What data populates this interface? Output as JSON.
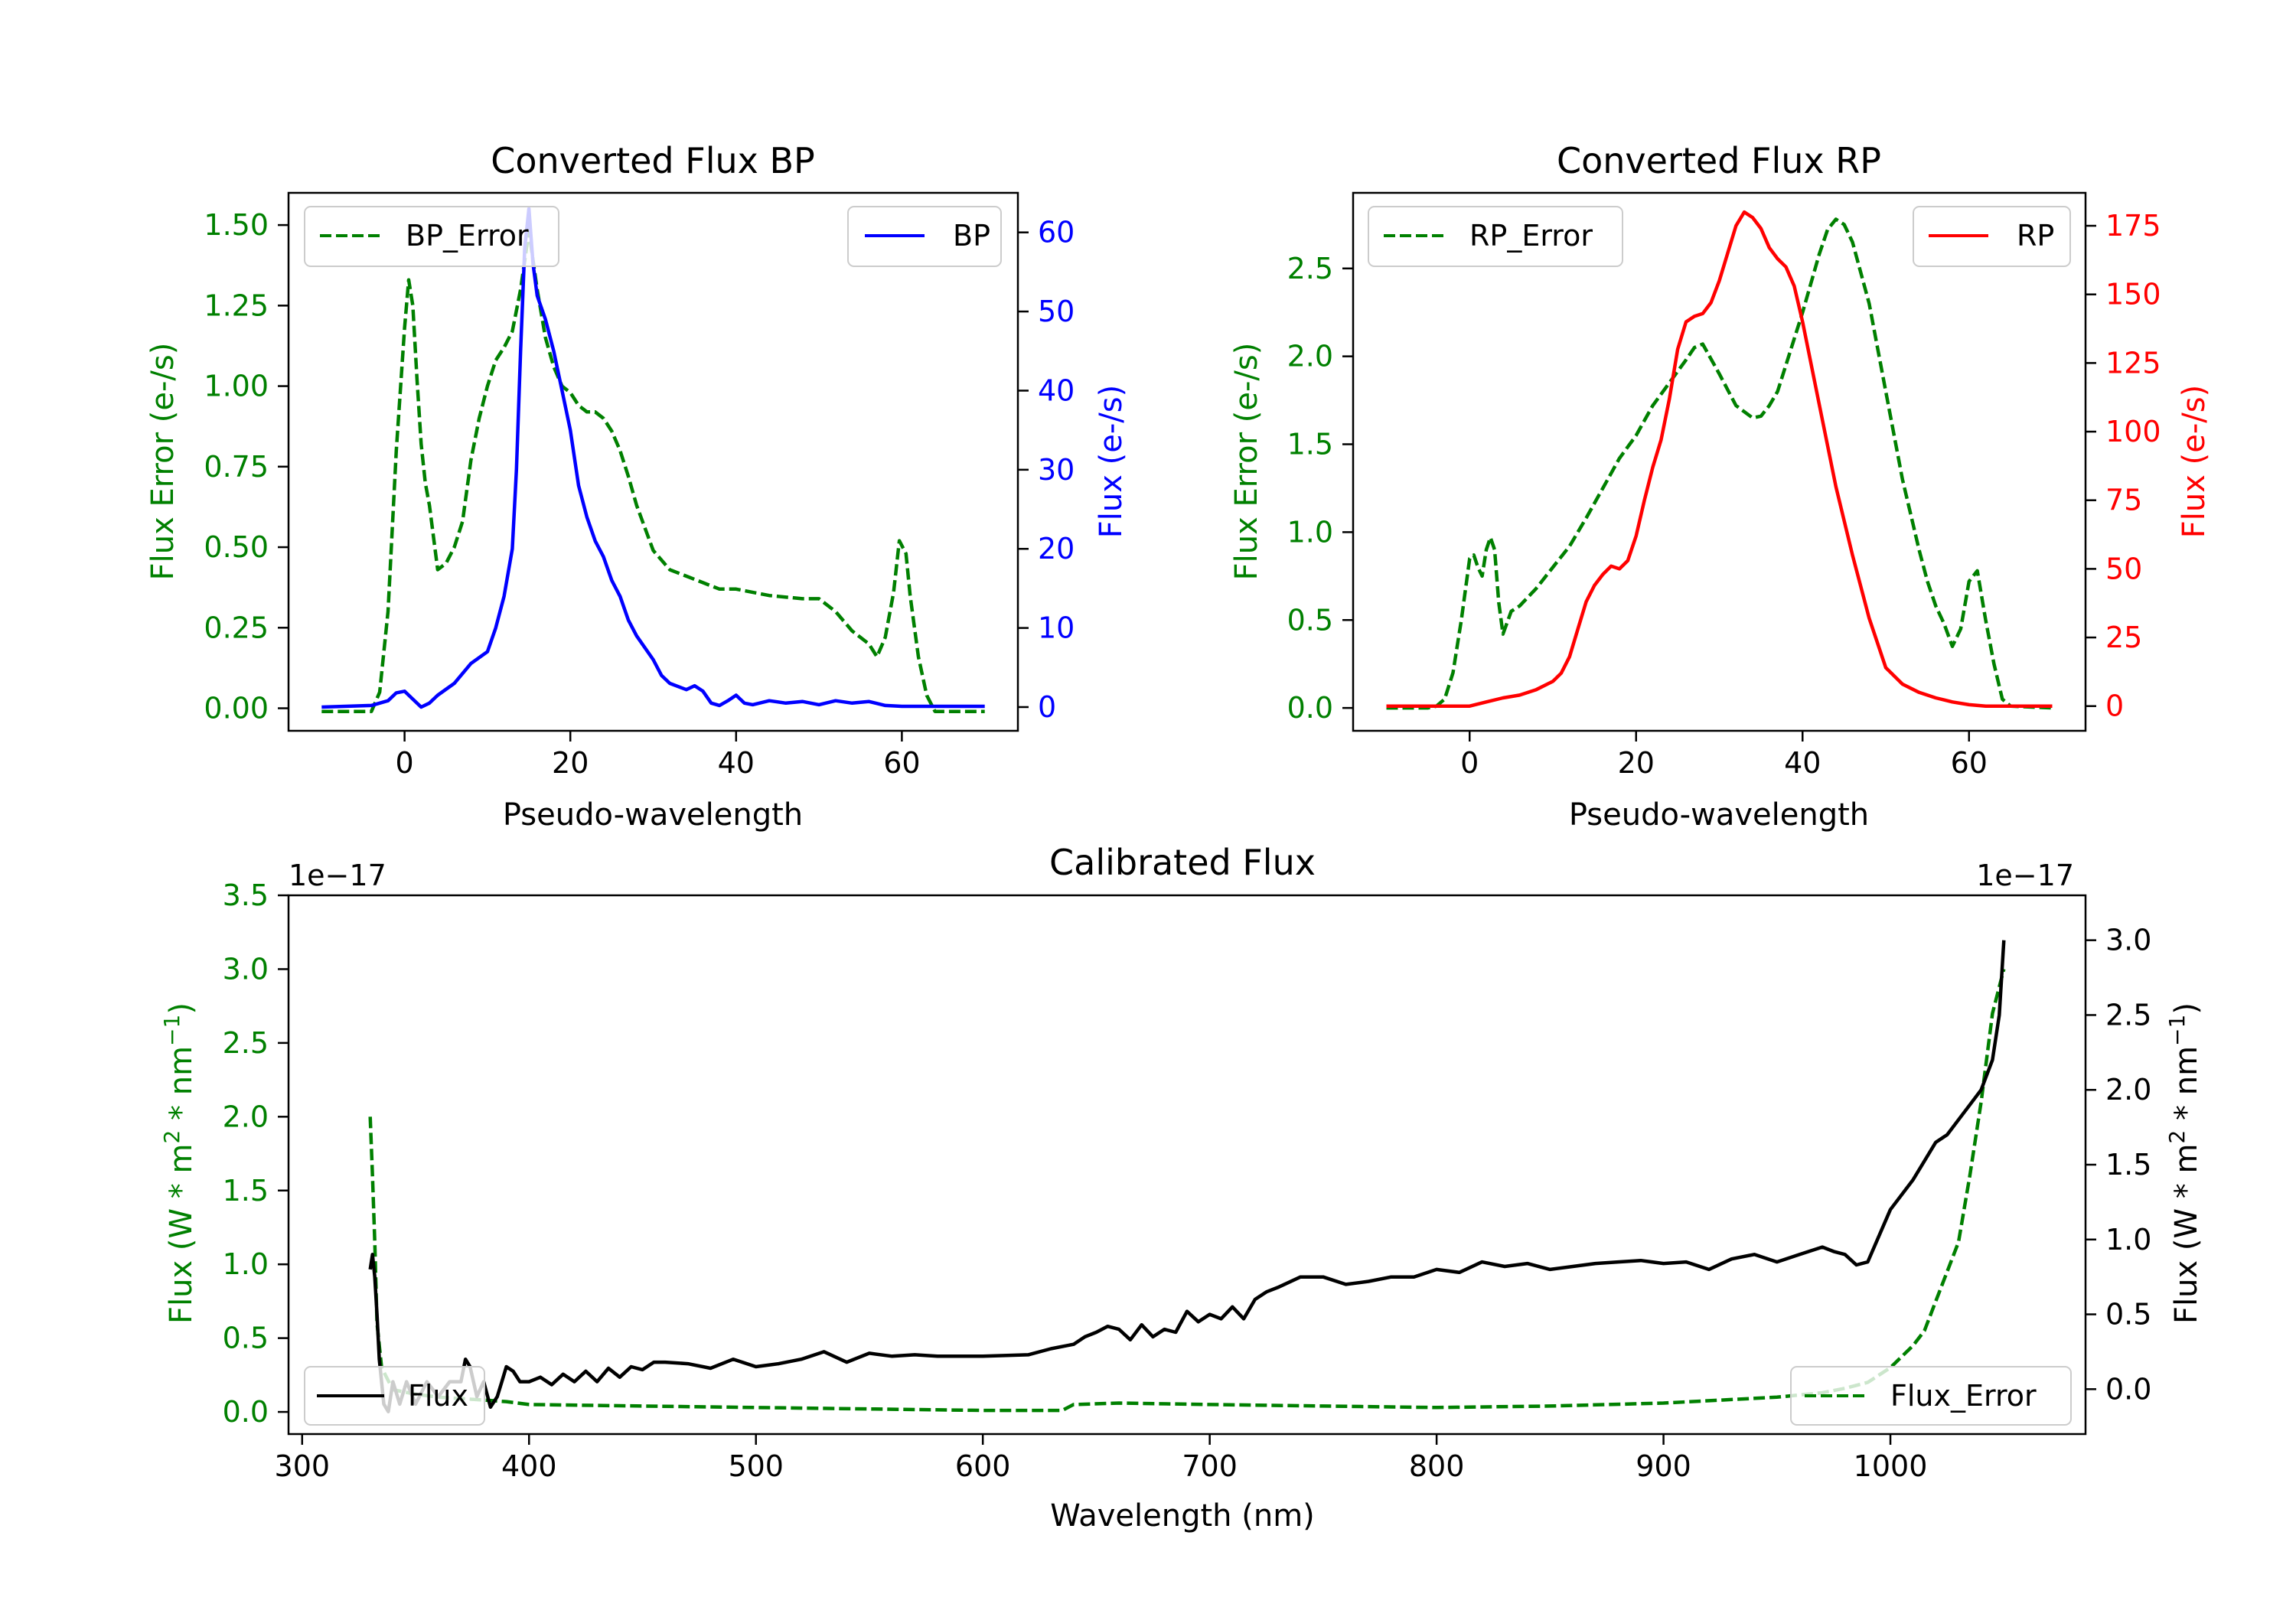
{
  "colors": {
    "bp_error": "#008000",
    "bp": "#0000ff",
    "rp_error": "#008000",
    "rp": "#ff0000",
    "flux": "#000000",
    "flux_error": "#008000"
  },
  "chart_data": [
    {
      "id": "bp",
      "type": "line",
      "title": "Converted Flux BP",
      "xlabel": "Pseudo-wavelength",
      "xlim": [
        -14,
        74
      ],
      "x_ticks": [
        0,
        20,
        40,
        60
      ],
      "left_axis": {
        "ylabel": "Flux Error (e-/s)",
        "color": "#008000",
        "ylim": [
          -0.07,
          1.6
        ],
        "ticks": [
          0.0,
          0.25,
          0.5,
          0.75,
          1.0,
          1.25,
          1.5
        ],
        "tick_labels": [
          "0.00",
          "0.25",
          "0.50",
          "0.75",
          "1.00",
          "1.25",
          "1.50"
        ]
      },
      "right_axis": {
        "ylabel": "Flux (e-/s)",
        "color": "#0000ff",
        "ylim": [
          -3,
          65
        ],
        "ticks": [
          0,
          10,
          20,
          30,
          40,
          50,
          60
        ],
        "tick_labels": [
          "0",
          "10",
          "20",
          "30",
          "40",
          "50",
          "60"
        ]
      },
      "legend_left": {
        "label": "BP_Error",
        "position": "upper left"
      },
      "legend_right": {
        "label": "BP",
        "position": "upper right"
      },
      "series": [
        {
          "name": "BP_Error",
          "axis": "left",
          "style": "dashed",
          "color": "#008000",
          "x": [
            -10,
            -4,
            -3,
            -2,
            -1,
            0,
            0.5,
            1,
            1.5,
            2,
            2.5,
            3,
            4,
            5,
            6,
            7,
            8,
            9,
            10,
            11,
            12,
            13,
            14,
            15,
            16,
            17,
            18,
            19,
            20,
            21,
            22,
            23,
            24,
            25,
            26,
            27,
            28,
            30,
            32,
            34,
            36,
            38,
            40,
            44,
            48,
            50,
            52,
            54,
            56,
            57,
            58,
            59,
            59.7,
            60.5,
            61,
            62,
            63,
            64,
            66,
            70
          ],
          "y": [
            -0.01,
            -0.01,
            0.05,
            0.3,
            0.8,
            1.18,
            1.33,
            1.25,
            1.02,
            0.82,
            0.7,
            0.63,
            0.43,
            0.45,
            0.5,
            0.58,
            0.77,
            0.9,
            1.0,
            1.08,
            1.12,
            1.17,
            1.3,
            1.48,
            1.3,
            1.15,
            1.06,
            1.0,
            0.98,
            0.94,
            0.92,
            0.92,
            0.9,
            0.86,
            0.8,
            0.72,
            0.63,
            0.49,
            0.43,
            0.41,
            0.39,
            0.37,
            0.37,
            0.35,
            0.34,
            0.34,
            0.3,
            0.24,
            0.2,
            0.16,
            0.22,
            0.36,
            0.52,
            0.48,
            0.35,
            0.16,
            0.04,
            -0.01,
            -0.01,
            -0.01
          ]
        },
        {
          "name": "BP",
          "axis": "right",
          "style": "solid",
          "color": "#0000ff",
          "x": [
            -10,
            -4,
            -2,
            -1,
            0,
            1,
            2,
            3,
            4,
            6,
            8,
            10,
            11,
            12,
            13,
            13.5,
            14,
            14.5,
            15,
            15.5,
            16,
            17,
            18,
            19,
            20,
            21,
            22,
            23,
            24,
            25,
            26,
            27,
            28,
            30,
            31,
            32,
            34,
            35,
            36,
            37,
            38,
            39,
            40,
            41,
            42,
            44,
            46,
            48,
            50,
            52,
            54,
            56,
            58,
            60,
            65,
            70
          ],
          "y": [
            0,
            0.2,
            0.8,
            1.8,
            2,
            1,
            0,
            0.5,
            1.5,
            3,
            5.5,
            7,
            10,
            14,
            20,
            30,
            45,
            58,
            63,
            56,
            52,
            49,
            45,
            40,
            35,
            28,
            24,
            21,
            19,
            16,
            14,
            11,
            9,
            6,
            4,
            3,
            2.2,
            2.7,
            2,
            0.5,
            0.2,
            0.8,
            1.5,
            0.5,
            0.3,
            0.8,
            0.5,
            0.7,
            0.3,
            0.8,
            0.5,
            0.7,
            0.2,
            0.1,
            0.1,
            0.1
          ]
        }
      ]
    },
    {
      "id": "rp",
      "type": "line",
      "title": "Converted Flux RP",
      "xlabel": "Pseudo-wavelength",
      "xlim": [
        -14,
        74
      ],
      "x_ticks": [
        0,
        20,
        40,
        60
      ],
      "left_axis": {
        "ylabel": "Flux Error (e-/s)",
        "color": "#008000",
        "ylim": [
          -0.13,
          2.93
        ],
        "ticks": [
          0.0,
          0.5,
          1.0,
          1.5,
          2.0,
          2.5
        ],
        "tick_labels": [
          "0.0",
          "0.5",
          "1.0",
          "1.5",
          "2.0",
          "2.5"
        ]
      },
      "right_axis": {
        "ylabel": "Flux (e-/s)",
        "color": "#ff0000",
        "ylim": [
          -9,
          187
        ],
        "ticks": [
          0,
          25,
          50,
          75,
          100,
          125,
          150,
          175
        ],
        "tick_labels": [
          "0",
          "25",
          "50",
          "75",
          "100",
          "125",
          "150",
          "175"
        ]
      },
      "legend_left": {
        "label": "RP_Error",
        "position": "upper left"
      },
      "legend_right": {
        "label": "RP",
        "position": "upper right"
      },
      "series": [
        {
          "name": "RP_Error",
          "axis": "left",
          "style": "dashed",
          "color": "#008000",
          "x": [
            -10,
            -5,
            -4,
            -3,
            -2,
            -1,
            0,
            0.5,
            1,
            1.5,
            2,
            2.5,
            3,
            3.5,
            4,
            5,
            6,
            8,
            10,
            12,
            14,
            16,
            18,
            20,
            22,
            24,
            26,
            27,
            28,
            30,
            32,
            34,
            35,
            36,
            37,
            38,
            40,
            42,
            43,
            44,
            45,
            46,
            48,
            50,
            52,
            54,
            55,
            56,
            57,
            58,
            59,
            60,
            61,
            62,
            63,
            64,
            65,
            70
          ],
          "y": [
            0,
            0,
            0.01,
            0.05,
            0.2,
            0.5,
            0.85,
            0.87,
            0.8,
            0.75,
            0.9,
            0.97,
            0.9,
            0.6,
            0.42,
            0.55,
            0.58,
            0.68,
            0.8,
            0.92,
            1.08,
            1.25,
            1.42,
            1.55,
            1.72,
            1.85,
            1.98,
            2.05,
            2.07,
            1.9,
            1.72,
            1.65,
            1.66,
            1.72,
            1.8,
            1.95,
            2.25,
            2.58,
            2.72,
            2.78,
            2.75,
            2.65,
            2.3,
            1.8,
            1.3,
            0.9,
            0.72,
            0.58,
            0.48,
            0.35,
            0.45,
            0.72,
            0.78,
            0.5,
            0.25,
            0.05,
            0.01,
            0
          ]
        },
        {
          "name": "RP",
          "axis": "right",
          "style": "solid",
          "color": "#ff0000",
          "x": [
            -10,
            0,
            2,
            4,
            6,
            8,
            10,
            11,
            12,
            13,
            14,
            15,
            16,
            17,
            18,
            19,
            20,
            21,
            22,
            23,
            24,
            25,
            26,
            27,
            28,
            29,
            30,
            31,
            32,
            33,
            34,
            35,
            36,
            37,
            38,
            39,
            40,
            42,
            44,
            46,
            48,
            50,
            52,
            54,
            56,
            58,
            60,
            62,
            65,
            70
          ],
          "y": [
            0,
            0,
            1.5,
            3,
            4,
            6,
            9,
            12,
            18,
            28,
            38,
            44,
            48,
            51,
            50,
            53,
            62,
            75,
            87,
            97,
            112,
            130,
            140,
            142,
            143,
            147,
            155,
            165,
            175,
            180,
            178,
            174,
            167,
            163,
            160,
            153,
            140,
            110,
            80,
            55,
            32,
            14,
            8,
            5,
            3,
            1.5,
            0.5,
            0,
            0,
            0
          ]
        }
      ]
    },
    {
      "id": "calibrated",
      "type": "line",
      "title": "Calibrated Flux",
      "xlabel": "Wavelength (nm)",
      "xlim": [
        294,
        1086
      ],
      "x_ticks": [
        300,
        400,
        500,
        600,
        700,
        800,
        900,
        1000
      ],
      "left_axis": {
        "ylabel": "Flux (W * m² * nm⁻¹)",
        "ylabel_main": "Flux (W * m",
        "ylabel_sup1": "2",
        "ylabel_mid": " * nm",
        "ylabel_sup2": "−1",
        "ylabel_end": ")",
        "offset_text": "1e−17",
        "color": "#008000",
        "ylim": [
          -0.15,
          3.5
        ],
        "ticks": [
          0.0,
          0.5,
          1.0,
          1.5,
          2.0,
          2.5,
          3.0,
          3.5
        ],
        "tick_labels": [
          "0.0",
          "0.5",
          "1.0",
          "1.5",
          "2.0",
          "2.5",
          "3.0",
          "3.5"
        ]
      },
      "right_axis": {
        "ylabel": "Flux (W * m² * nm⁻¹)",
        "ylabel_main": "Flux (W * m",
        "ylabel_sup1": "2",
        "ylabel_mid": " * nm",
        "ylabel_sup2": "−1",
        "ylabel_end": ")",
        "offset_text": "1e−17",
        "color": "#000000",
        "ylim": [
          -0.3,
          3.3
        ],
        "ticks": [
          0.0,
          0.5,
          1.0,
          1.5,
          2.0,
          2.5,
          3.0
        ],
        "tick_labels": [
          "0.0",
          "0.5",
          "1.0",
          "1.5",
          "2.0",
          "2.5",
          "3.0"
        ]
      },
      "legend_left": {
        "label": "Flux",
        "position": "lower left"
      },
      "legend_right": {
        "label": "Flux_Error",
        "position": "lower right"
      },
      "series": [
        {
          "name": "Flux_Error",
          "axis": "left",
          "style": "dashed",
          "color": "#008000",
          "x": [
            330,
            331,
            332,
            333,
            335,
            340,
            350,
            360,
            370,
            380,
            390,
            400,
            450,
            500,
            550,
            600,
            620,
            635,
            640,
            660,
            700,
            750,
            800,
            850,
            900,
            950,
            970,
            980,
            990,
            1000,
            1010,
            1015,
            1020,
            1025,
            1030,
            1035,
            1040,
            1045,
            1050
          ],
          "y": [
            2.0,
            1.6,
            1.15,
            0.6,
            0.3,
            0.15,
            0.12,
            0.1,
            0.09,
            0.08,
            0.07,
            0.05,
            0.04,
            0.03,
            0.02,
            0.01,
            0.01,
            0.01,
            0.05,
            0.06,
            0.05,
            0.04,
            0.03,
            0.04,
            0.06,
            0.1,
            0.13,
            0.16,
            0.2,
            0.3,
            0.45,
            0.55,
            0.75,
            0.95,
            1.15,
            1.6,
            2.1,
            2.7,
            3.0
          ]
        },
        {
          "name": "Flux",
          "axis": "right",
          "style": "solid",
          "color": "#000000",
          "x": [
            330,
            331,
            332,
            333,
            334,
            336,
            338,
            340,
            343,
            346,
            350,
            355,
            360,
            365,
            370,
            372,
            374,
            377,
            380,
            383,
            386,
            388,
            390,
            393,
            396,
            400,
            405,
            410,
            415,
            420,
            425,
            430,
            435,
            440,
            445,
            450,
            455,
            460,
            470,
            480,
            490,
            500,
            510,
            520,
            530,
            540,
            550,
            560,
            570,
            580,
            600,
            620,
            630,
            640,
            645,
            650,
            655,
            660,
            665,
            670,
            675,
            680,
            685,
            690,
            695,
            700,
            705,
            710,
            715,
            720,
            725,
            730,
            740,
            750,
            760,
            770,
            780,
            790,
            800,
            810,
            820,
            830,
            840,
            850,
            860,
            870,
            880,
            890,
            900,
            910,
            920,
            930,
            940,
            950,
            960,
            970,
            975,
            980,
            985,
            990,
            1000,
            1010,
            1020,
            1025,
            1030,
            1035,
            1040,
            1045,
            1048,
            1050
          ],
          "y": [
            0.8,
            0.9,
            0.75,
            0.5,
            0.2,
            -0.1,
            -0.15,
            0.05,
            -0.1,
            0.05,
            -0.1,
            0.05,
            -0.05,
            0.05,
            0.05,
            0.2,
            0.15,
            -0.05,
            0.05,
            -0.12,
            -0.05,
            0.05,
            0.15,
            0.12,
            0.05,
            0.05,
            0.08,
            0.03,
            0.1,
            0.05,
            0.12,
            0.05,
            0.14,
            0.08,
            0.15,
            0.13,
            0.18,
            0.18,
            0.17,
            0.14,
            0.2,
            0.15,
            0.17,
            0.2,
            0.25,
            0.18,
            0.24,
            0.22,
            0.23,
            0.22,
            0.22,
            0.23,
            0.27,
            0.3,
            0.35,
            0.38,
            0.42,
            0.4,
            0.33,
            0.43,
            0.35,
            0.4,
            0.38,
            0.52,
            0.45,
            0.5,
            0.47,
            0.55,
            0.47,
            0.6,
            0.65,
            0.68,
            0.75,
            0.75,
            0.7,
            0.72,
            0.75,
            0.75,
            0.8,
            0.78,
            0.85,
            0.82,
            0.84,
            0.8,
            0.82,
            0.84,
            0.85,
            0.86,
            0.84,
            0.85,
            0.8,
            0.87,
            0.9,
            0.85,
            0.9,
            0.95,
            0.92,
            0.9,
            0.83,
            0.85,
            1.2,
            1.4,
            1.65,
            1.7,
            1.8,
            1.9,
            2.0,
            2.2,
            2.5,
            3.0
          ]
        }
      ]
    }
  ]
}
